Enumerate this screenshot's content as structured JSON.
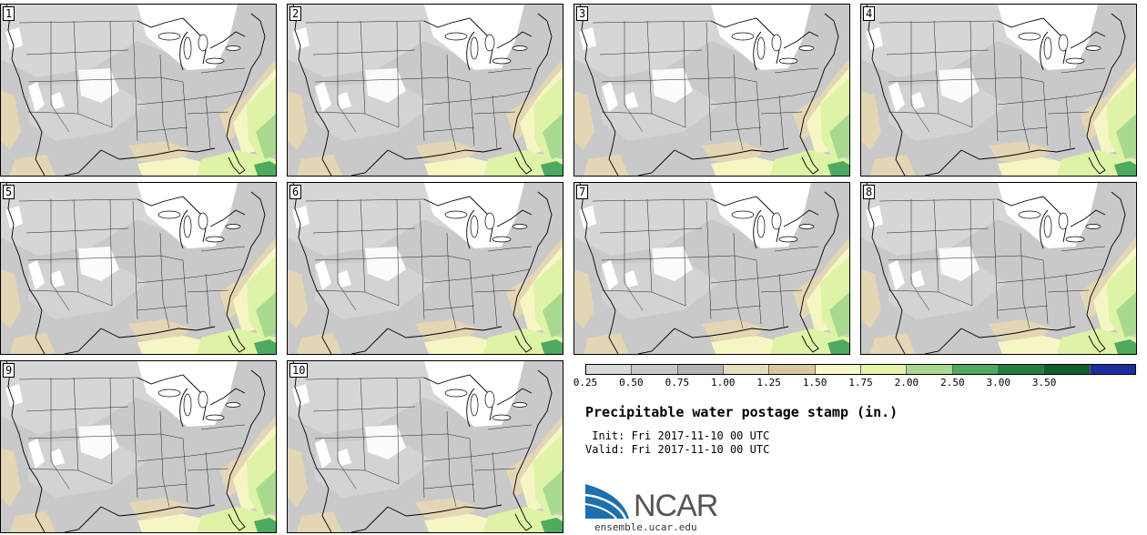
{
  "panels": [
    {
      "label": "1"
    },
    {
      "label": "2"
    },
    {
      "label": "3"
    },
    {
      "label": "4"
    },
    {
      "label": "5"
    },
    {
      "label": "6"
    },
    {
      "label": "7"
    },
    {
      "label": "8"
    },
    {
      "label": "9"
    },
    {
      "label": "10"
    }
  ],
  "colorbar": {
    "ticks": [
      "0.25",
      "0.50",
      "0.75",
      "1.00",
      "1.25",
      "1.50",
      "1.75",
      "2.00",
      "2.50",
      "3.00",
      "3.50"
    ],
    "colors": [
      "#d9d9d9",
      "#c8c8c8",
      "#b3b3b3",
      "#e8dcc0",
      "#d7c8a0",
      "#f8f8c8",
      "#e4f5a8",
      "#a9d98e",
      "#4daa5e",
      "#1f8040",
      "#0f5c2c",
      "#1c2d9e"
    ]
  },
  "title": "Precipitable water postage stamp (in.)",
  "init_text": " Init: Fri 2017-11-10 00 UTC",
  "valid_text": "Valid: Fri 2017-11-10 00 UTC",
  "logo": {
    "name": "NCAR",
    "url": "ensemble.ucar.edu"
  }
}
